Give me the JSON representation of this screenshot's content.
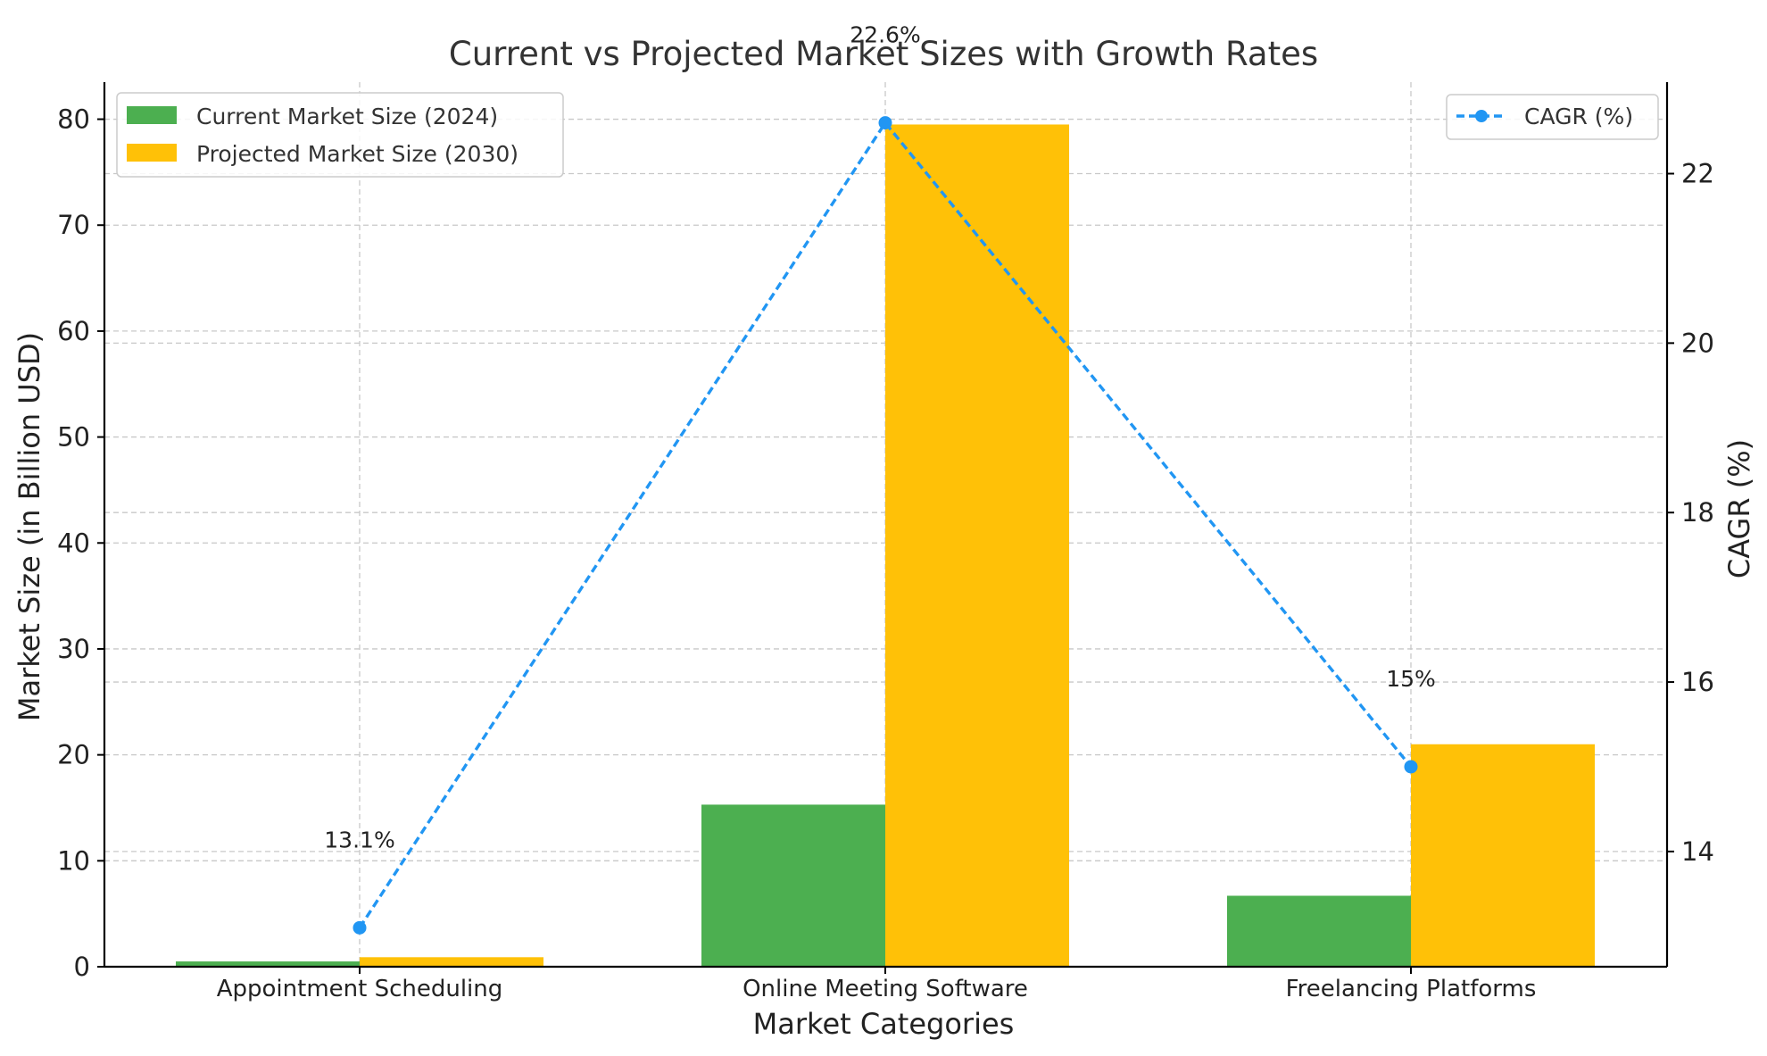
{
  "chart_data": {
    "type": "bar",
    "title": "Current vs Projected Market Sizes with Growth Rates",
    "xlabel": "Market Categories",
    "ylabel": "Market Size (in Billion USD)",
    "y2label": "CAGR (%)",
    "categories": [
      "Appointment Scheduling",
      "Online Meeting Software",
      "Freelancing Platforms"
    ],
    "series": [
      {
        "name": "Current Market Size (2024)",
        "type": "bar",
        "axis": "left",
        "color": "#4caf50",
        "values": [
          0.5,
          15.3,
          6.7
        ]
      },
      {
        "name": "Projected Market Size (2030)",
        "type": "bar",
        "axis": "left",
        "color": "#ffc107",
        "values": [
          0.9,
          79.5,
          21.0
        ]
      },
      {
        "name": "CAGR (%)",
        "type": "line",
        "axis": "right",
        "color": "#2196f3",
        "values": [
          13.1,
          22.6,
          15.0
        ],
        "labels": [
          "13.1%",
          "22.6%",
          "15%"
        ]
      }
    ],
    "ylim": [
      0,
      83.5
    ],
    "y2lim": [
      12.64,
      23.08
    ],
    "yticks": [
      0,
      10,
      20,
      30,
      40,
      50,
      60,
      70,
      80
    ],
    "y2ticks": [
      14,
      16,
      18,
      20,
      22
    ],
    "grid": true,
    "legend_left": "top-left",
    "legend_right": "top-right"
  }
}
